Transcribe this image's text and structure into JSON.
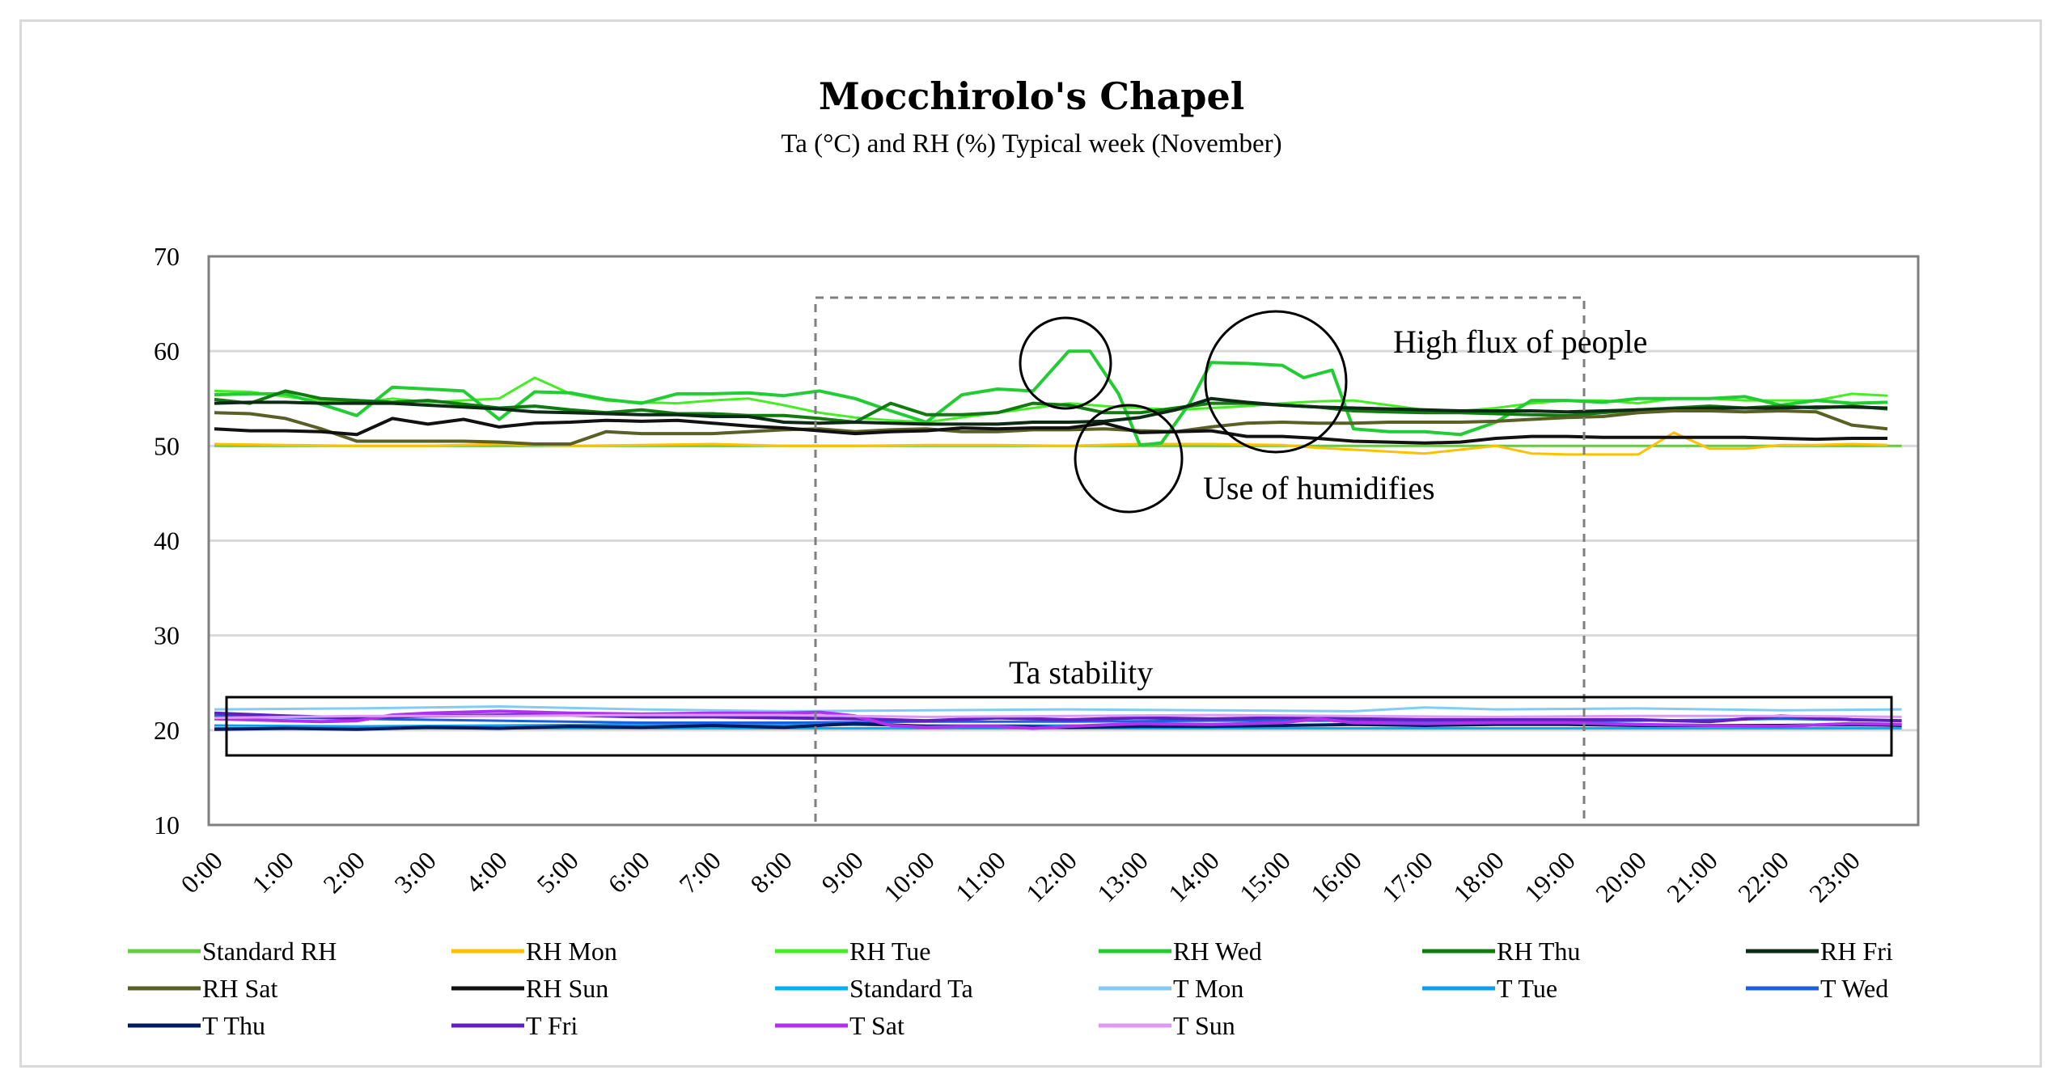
{
  "chart_data": {
    "type": "line",
    "title": "Mocchirolo's  Chapel",
    "subtitle": "Ta  (°C) and RH (%)  Typical week (November)",
    "xlabel": "",
    "ylabel": "",
    "ylim": [
      10,
      70
    ],
    "yticks": [
      10,
      20,
      30,
      40,
      50,
      60,
      70
    ],
    "grid": "horizontal",
    "legend_position": "bottom",
    "categories": [
      "0:00",
      "1:00",
      "2:00",
      "3:00",
      "4:00",
      "5:00",
      "6:00",
      "7:00",
      "8:00",
      "9:00",
      "10:00",
      "11:00",
      "12:00",
      "13:00",
      "14:00",
      "15:00",
      "16:00",
      "17:00",
      "18:00",
      "19:00",
      "20:00",
      "21:00",
      "22:00",
      "23:00"
    ],
    "x_max_hours": 23.7,
    "series": [
      {
        "name": "Standard RH",
        "color": "#66cc44",
        "width": 3,
        "x": [
          0,
          23.7
        ],
        "values": [
          50,
          50
        ]
      },
      {
        "name": "RH Mon",
        "color": "#ffc000",
        "width": 3,
        "x": [
          0,
          1,
          2,
          3,
          4,
          5,
          6,
          7,
          8,
          9,
          10,
          11,
          12,
          13,
          14,
          15,
          15.5,
          16,
          16.5,
          17,
          17.5,
          18,
          18.5,
          19,
          19.5,
          20,
          20.5,
          21,
          21.5,
          22,
          22.5,
          23,
          23.5
        ],
        "values": [
          50.2,
          50.1,
          50,
          50,
          50.2,
          50,
          50.1,
          50.2,
          50,
          50,
          50.1,
          50.1,
          50,
          50.2,
          50.2,
          50.1,
          49.8,
          49.6,
          49.4,
          49.2,
          49.6,
          50,
          49.2,
          49.1,
          49.1,
          49.1,
          51.4,
          49.7,
          49.7,
          50.1,
          50.1,
          50.2,
          50.1
        ]
      },
      {
        "name": "RH Tue",
        "color": "#44ee22",
        "width": 3,
        "x": [
          0,
          0.5,
          1,
          1.5,
          2,
          2.5,
          3,
          3.5,
          4,
          4.5,
          5,
          5.5,
          6,
          6.5,
          7,
          7.5,
          8,
          8.5,
          9,
          9.5,
          10,
          10.5,
          11,
          11.5,
          12,
          12.5,
          13,
          13.5,
          14,
          14.5,
          15,
          15.5,
          16,
          16.5,
          17,
          17.5,
          18,
          18.5,
          19,
          19.5,
          20,
          20.5,
          21,
          21.5,
          22,
          22.5,
          23,
          23.5
        ],
        "values": [
          55.8,
          55.7,
          55.2,
          54.8,
          54.5,
          55,
          54.6,
          54.8,
          55,
          57.2,
          55.5,
          54.8,
          54.6,
          54.5,
          54.8,
          55,
          54.3,
          53.5,
          53,
          52.7,
          52.5,
          53,
          53.5,
          54,
          54.5,
          54.2,
          54,
          53.8,
          54,
          54.2,
          54.5,
          54.7,
          54.8,
          54.3,
          53.8,
          53.7,
          54,
          54.5,
          54.8,
          54.8,
          54.5,
          55,
          55,
          54.8,
          54.8,
          54.8,
          55.5,
          55.3
        ]
      },
      {
        "name": "RH Wed",
        "color": "#22cc33",
        "width": 4,
        "x": [
          0,
          0.5,
          1,
          1.5,
          2,
          2.5,
          3,
          3.5,
          4,
          4.5,
          5,
          5.5,
          6,
          6.5,
          7,
          7.5,
          8,
          8.5,
          9,
          9.5,
          10,
          10.5,
          11,
          11.5,
          12,
          12.3,
          12.7,
          13,
          13.3,
          13.7,
          14,
          14.5,
          15,
          15.3,
          15.7,
          16,
          16.5,
          17,
          17.5,
          18,
          18.5,
          19,
          19.5,
          20,
          20.5,
          21,
          21.5,
          22,
          22.5,
          23,
          23.5
        ],
        "values": [
          55.4,
          55.5,
          55.5,
          54.4,
          53.2,
          56.2,
          56,
          55.8,
          52.8,
          55.7,
          55.6,
          54.9,
          54.5,
          55.5,
          55.5,
          55.6,
          55.3,
          55.8,
          55,
          53.7,
          52.5,
          55.4,
          56,
          55.8,
          60,
          60,
          55.5,
          50.1,
          50.3,
          54.5,
          58.8,
          58.7,
          58.5,
          57.2,
          58,
          51.8,
          51.5,
          51.5,
          51.2,
          52.5,
          54.8,
          54.8,
          54.6,
          55,
          55,
          55,
          55.2,
          54.3,
          54.8,
          54.5,
          54.6
        ]
      },
      {
        "name": "RH Thu",
        "color": "#107c10",
        "width": 4,
        "x": [
          0,
          0.5,
          1,
          1.5,
          2,
          2.5,
          3,
          3.5,
          4,
          4.5,
          5,
          5.5,
          6,
          6.5,
          7,
          7.5,
          8,
          8.5,
          9,
          9.5,
          10,
          10.5,
          11,
          11.5,
          12,
          12.5,
          13,
          13.5,
          14,
          14.5,
          15,
          15.5,
          16,
          16.5,
          17,
          17.5,
          18,
          18.5,
          19,
          19.5,
          20,
          20.5,
          21,
          21.5,
          22,
          22.5,
          23,
          23.5
        ],
        "values": [
          54.9,
          54.5,
          55.8,
          55,
          54.8,
          54.6,
          54.8,
          54.4,
          54,
          54.2,
          53.8,
          53.5,
          53.8,
          53.4,
          53.4,
          53.2,
          53.2,
          52.9,
          52.5,
          54.5,
          53.3,
          53.3,
          53.5,
          54.5,
          54.3,
          53.5,
          53.5,
          54,
          54.5,
          54.5,
          54.3,
          54.1,
          53.7,
          53.6,
          53.5,
          53.5,
          53.4,
          53.3,
          53.2,
          53.5,
          53.8,
          54,
          54.2,
          54,
          54.2,
          54,
          54.2,
          53.9
        ]
      },
      {
        "name": "RH Fri",
        "color": "#0d2a14",
        "width": 4,
        "x": [
          0,
          0.5,
          1,
          1.5,
          2,
          2.5,
          3,
          3.5,
          4,
          4.5,
          5,
          5.5,
          6,
          6.5,
          7,
          7.5,
          8,
          8.5,
          9,
          9.5,
          10,
          10.5,
          11,
          11.5,
          12,
          12.5,
          13,
          13.5,
          14,
          14.5,
          15,
          15.5,
          16,
          16.5,
          17,
          17.5,
          18,
          18.5,
          19,
          19.5,
          20,
          20.5,
          21,
          21.5,
          22,
          22.5,
          23,
          23.5
        ],
        "values": [
          54.5,
          54.6,
          54.6,
          54.5,
          54.5,
          54.5,
          54.3,
          54.1,
          53.9,
          53.6,
          53.5,
          53.4,
          53.3,
          53.3,
          53.1,
          53.1,
          52.5,
          52.4,
          52.5,
          52.4,
          52.3,
          52.3,
          52.3,
          52.5,
          52.5,
          52.6,
          53,
          53.8,
          55,
          54.6,
          54.3,
          54.1,
          54,
          53.9,
          53.8,
          53.7,
          53.7,
          53.7,
          53.6,
          53.7,
          53.8,
          53.9,
          54,
          54,
          54,
          54.1,
          54.1,
          54
        ]
      },
      {
        "name": "RH Sat",
        "color": "#5a6025",
        "width": 4,
        "x": [
          0,
          0.5,
          1,
          1.5,
          2,
          2.5,
          3,
          3.5,
          4,
          4.5,
          5,
          5.5,
          6,
          6.5,
          7,
          7.5,
          8,
          8.5,
          9,
          9.5,
          10,
          10.5,
          11,
          11.5,
          12,
          12.5,
          13,
          13.5,
          14,
          14.5,
          15,
          15.5,
          16,
          16.5,
          17,
          17.5,
          18,
          18.5,
          19,
          19.5,
          20,
          20.5,
          21,
          21.5,
          22,
          22.5,
          23,
          23.5
        ],
        "values": [
          53.5,
          53.4,
          52.9,
          51.8,
          50.5,
          50.5,
          50.5,
          50.5,
          50.4,
          50.2,
          50.2,
          51.5,
          51.3,
          51.3,
          51.3,
          51.5,
          51.7,
          51.8,
          51.5,
          51.7,
          51.8,
          51.5,
          51.5,
          51.7,
          51.7,
          51.8,
          51.6,
          51.5,
          52,
          52.4,
          52.5,
          52.4,
          52.4,
          52.5,
          52.5,
          52.5,
          52.6,
          52.8,
          53,
          53.1,
          53.5,
          53.7,
          53.7,
          53.6,
          53.7,
          53.6,
          52.2,
          51.8
        ]
      },
      {
        "name": "RH Sun",
        "color": "#111111",
        "width": 4,
        "x": [
          0,
          0.5,
          1,
          1.5,
          2,
          2.5,
          3,
          3.5,
          4,
          4.5,
          5,
          5.5,
          6,
          6.5,
          7,
          7.5,
          8,
          8.5,
          9,
          9.5,
          10,
          10.5,
          11,
          11.5,
          12,
          12.5,
          13,
          13.5,
          14,
          14.5,
          15,
          15.5,
          16,
          16.5,
          17,
          17.5,
          18,
          18.5,
          19,
          19.5,
          20,
          20.5,
          21,
          21.5,
          22,
          22.5,
          23,
          23.5
        ],
        "values": [
          51.8,
          51.6,
          51.6,
          51.5,
          51.2,
          52.9,
          52.3,
          52.8,
          52,
          52.4,
          52.5,
          52.7,
          52.6,
          52.7,
          52.4,
          52.1,
          51.9,
          51.6,
          51.3,
          51.5,
          51.6,
          51.9,
          51.8,
          51.9,
          51.9,
          52.4,
          51.4,
          51.5,
          51.6,
          51,
          51,
          50.8,
          50.5,
          50.4,
          50.3,
          50.4,
          50.8,
          51,
          51,
          50.9,
          50.9,
          50.9,
          50.9,
          50.9,
          50.8,
          50.7,
          50.8,
          50.8
        ]
      },
      {
        "name": "Standard Ta",
        "color": "#00b0f0",
        "width": 3,
        "x": [
          0,
          23.7
        ],
        "values": [
          20.2,
          20.2
        ]
      },
      {
        "name": "T Mon",
        "color": "#80ccf5",
        "width": 3,
        "x": [
          0,
          2,
          4,
          6,
          8,
          10,
          12,
          14,
          16,
          17,
          18,
          20,
          22,
          23.7
        ],
        "values": [
          22.2,
          22.3,
          22.5,
          22.2,
          22,
          22.1,
          22.2,
          22.1,
          22,
          22.4,
          22.2,
          22.3,
          22.1,
          22.2
        ]
      },
      {
        "name": "T Tue",
        "color": "#0aa0f0",
        "width": 3,
        "x": [
          0,
          2,
          4,
          6,
          8,
          10,
          12,
          14,
          16,
          18,
          20,
          22,
          23.7
        ],
        "values": [
          20.5,
          20.4,
          20.5,
          20.6,
          20.6,
          20.5,
          20.5,
          20.5,
          20.6,
          20.6,
          20.6,
          20.5,
          20.5
        ]
      },
      {
        "name": "T Wed",
        "color": "#1a60e0",
        "width": 3,
        "x": [
          0,
          2,
          4,
          6,
          8,
          10,
          12,
          14,
          16,
          18,
          20,
          22,
          23.7
        ],
        "values": [
          21.5,
          21.2,
          21,
          20.8,
          20.8,
          20.9,
          20.9,
          21,
          21,
          20.9,
          21,
          21.2,
          21
        ]
      },
      {
        "name": "T Thu",
        "color": "#001a60",
        "width": 4,
        "x": [
          0,
          1,
          2,
          3,
          4,
          5,
          6,
          7,
          8,
          9,
          10,
          11,
          12,
          13,
          14,
          15,
          16,
          17,
          18,
          19,
          20,
          21,
          22,
          23,
          23.7
        ],
        "values": [
          20.1,
          20.2,
          20.1,
          20.3,
          20.2,
          20.4,
          20.3,
          20.5,
          20.3,
          20.7,
          20.4,
          20.4,
          20.3,
          20.4,
          20.4,
          20.5,
          20.6,
          20.5,
          20.6,
          20.6,
          20.5,
          20.5,
          20.5,
          20.6,
          20.5
        ]
      },
      {
        "name": "T Fri",
        "color": "#6020c0",
        "width": 4,
        "x": [
          0,
          1,
          2,
          3,
          4,
          5,
          6,
          7,
          8,
          9,
          10,
          11,
          12,
          13,
          14,
          15,
          16,
          17,
          18,
          19,
          20,
          21,
          22,
          23,
          23.7
        ],
        "values": [
          21.8,
          21.5,
          21.3,
          21.5,
          21.6,
          21.6,
          21.4,
          21.4,
          21.3,
          21.2,
          21,
          21.3,
          21.1,
          21.3,
          21.2,
          21.3,
          21.2,
          21.1,
          21.1,
          21.1,
          21.1,
          20.9,
          21.5,
          21.1,
          21
        ]
      },
      {
        "name": "T Sat",
        "color": "#b030f0",
        "width": 4,
        "x": [
          0,
          1,
          1.5,
          2,
          2.5,
          3,
          4,
          5,
          6,
          7,
          8,
          8.5,
          9,
          9.5,
          10,
          10.5,
          11,
          11.5,
          12,
          13,
          14,
          15,
          15.5,
          16,
          17,
          18,
          19,
          20,
          21,
          22,
          23,
          23.7
        ],
        "values": [
          21.2,
          21,
          20.9,
          21,
          21.6,
          21.8,
          22,
          21.8,
          21.7,
          21.8,
          21.8,
          21.9,
          21.5,
          20.5,
          20.3,
          20.4,
          20.4,
          20.2,
          20.4,
          20.7,
          20.6,
          20.8,
          21.2,
          20.8,
          20.7,
          20.8,
          20.8,
          20.6,
          20.5,
          20.4,
          20.7,
          20.6
        ]
      },
      {
        "name": "T Sun",
        "color": "#dd99f5",
        "width": 3,
        "x": [
          0,
          2,
          4,
          6,
          8,
          10,
          12,
          14,
          16,
          18,
          20,
          22,
          23.7
        ],
        "values": [
          21.3,
          21.5,
          21.5,
          21.6,
          21.6,
          21.4,
          21.5,
          21.6,
          21.5,
          21.4,
          21.5,
          21.5,
          21.4
        ]
      }
    ],
    "annotations": {
      "high_flux": "High flux of people",
      "humidifiers": "Use of humidifies",
      "ta_stability": "Ta stability"
    }
  }
}
